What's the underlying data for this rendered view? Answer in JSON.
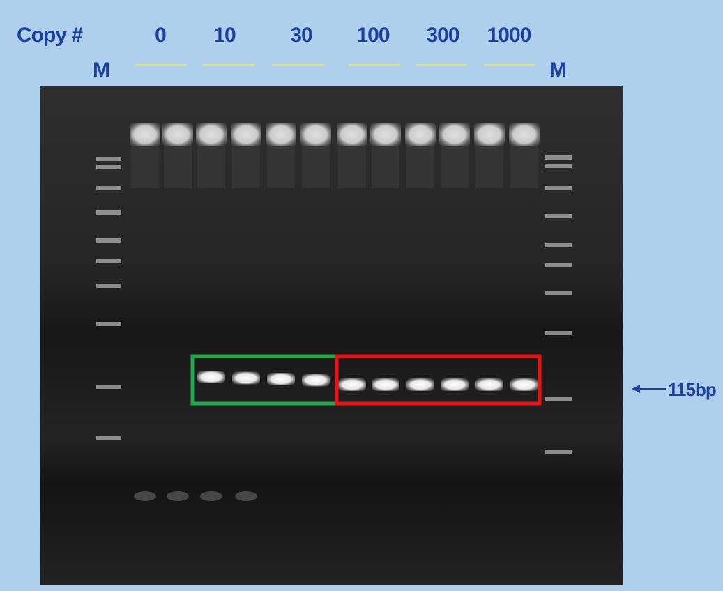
{
  "header": {
    "label": "Copy #",
    "copies": [
      "0",
      "10",
      "30",
      "100",
      "300",
      "1000"
    ]
  },
  "markers": [
    "M",
    "M"
  ],
  "annotation": "115bp"
}
